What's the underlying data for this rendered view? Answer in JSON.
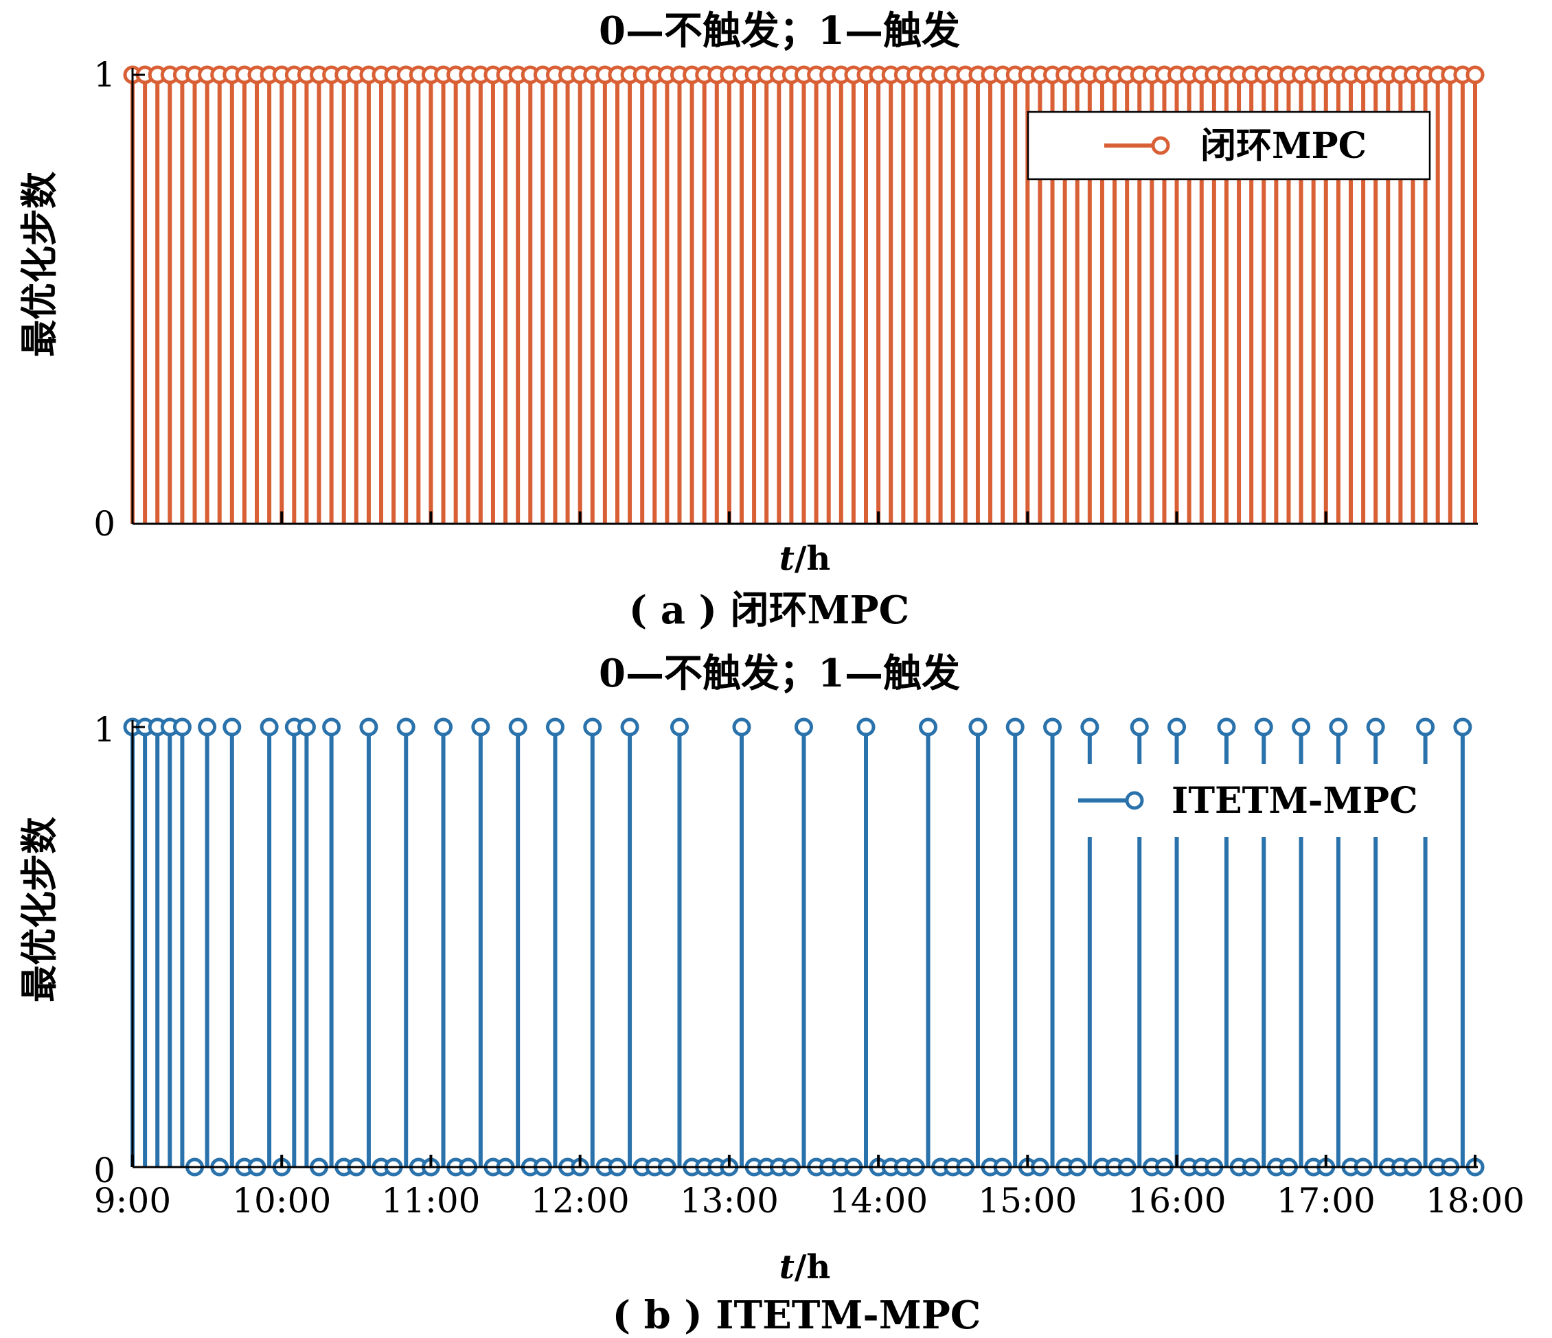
{
  "chart_data": [
    {
      "type": "stem",
      "panel": "a",
      "title": "0—不触发；1—触发",
      "ylabel": "最优化步数",
      "xlabel_var": "t",
      "xlabel_unit": "/h",
      "caption": "( a ) 闭环MPC",
      "ylim": [
        0,
        1
      ],
      "yticks": [
        "0",
        "1"
      ],
      "xlim_hours": [
        9,
        18
      ],
      "xtick_hours": [
        10,
        11,
        12,
        13,
        14,
        15,
        16,
        17
      ],
      "xtick_labels_visible": false,
      "legend": {
        "position": "top-right",
        "boxed": true
      },
      "color": "#D95F35",
      "series": [
        {
          "name": "闭环MPC",
          "sampling_interval_min": 5,
          "values_description_note": "",
          "values": [
            1,
            1,
            1,
            1,
            1,
            1,
            1,
            1,
            1,
            1,
            1,
            1,
            1,
            1,
            1,
            1,
            1,
            1,
            1,
            1,
            1,
            1,
            1,
            1,
            1,
            1,
            1,
            1,
            1,
            1,
            1,
            1,
            1,
            1,
            1,
            1,
            1,
            1,
            1,
            1,
            1,
            1,
            1,
            1,
            1,
            1,
            1,
            1,
            1,
            1,
            1,
            1,
            1,
            1,
            1,
            1,
            1,
            1,
            1,
            1,
            1,
            1,
            1,
            1,
            1,
            1,
            1,
            1,
            1,
            1,
            1,
            1,
            1,
            1,
            1,
            1,
            1,
            1,
            1,
            1,
            1,
            1,
            1,
            1,
            1,
            1,
            1,
            1,
            1,
            1,
            1,
            1,
            1,
            1,
            1,
            1,
            1,
            1,
            1,
            1,
            1,
            1,
            1,
            1,
            1,
            1,
            1,
            1,
            1
          ]
        }
      ]
    },
    {
      "type": "stem",
      "panel": "b",
      "title": "0—不触发；1—触发",
      "ylabel": "最优化步数",
      "xlabel_var": "t",
      "xlabel_unit": "/h",
      "caption": "( b ) ITETM-MPC",
      "ylim": [
        0,
        1
      ],
      "yticks": [
        "0",
        "1"
      ],
      "xlim_hours": [
        9,
        18
      ],
      "xtick_hours": [
        9,
        10,
        11,
        12,
        13,
        14,
        15,
        16,
        17,
        18
      ],
      "xtick_labels": [
        "9:00",
        "10:00",
        "11:00",
        "12:00",
        "13:00",
        "14:00",
        "15:00",
        "16:00",
        "17:00",
        "18:00"
      ],
      "legend": {
        "position": "top-right",
        "boxed": false
      },
      "color": "#2A72AB",
      "series": [
        {
          "name": "ITETM-MPC",
          "sampling_interval_min": 5,
          "values": [
            1,
            1,
            1,
            1,
            1,
            0,
            1,
            0,
            1,
            0,
            0,
            1,
            0,
            1,
            1,
            0,
            1,
            0,
            0,
            1,
            0,
            0,
            1,
            0,
            0,
            1,
            0,
            0,
            1,
            0,
            0,
            1,
            0,
            0,
            1,
            0,
            0,
            1,
            0,
            0,
            1,
            0,
            0,
            0,
            1,
            0,
            0,
            0,
            0,
            1,
            0,
            0,
            0,
            0,
            1,
            0,
            0,
            0,
            0,
            1,
            0,
            0,
            0,
            0,
            1,
            0,
            0,
            0,
            1,
            0,
            0,
            1,
            0,
            0,
            1,
            0,
            0,
            1,
            0,
            0,
            0,
            1,
            0,
            0,
            1,
            0,
            0,
            0,
            1,
            0,
            0,
            1,
            0,
            0,
            1,
            0,
            0,
            1,
            0,
            0,
            1,
            0,
            0,
            0,
            1,
            0,
            0,
            1,
            0,
            1
          ]
        }
      ]
    }
  ]
}
